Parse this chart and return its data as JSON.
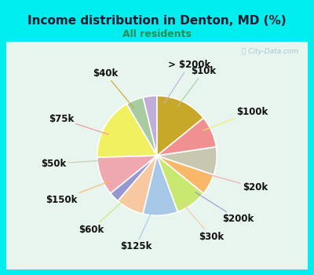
{
  "title": "Income distribution in Denton, MD (%)",
  "subtitle": "All residents",
  "title_color": "#1a1a2e",
  "subtitle_color": "#2e8b57",
  "background_outer": "#00eeee",
  "background_inner": "#e8f5ee",
  "watermark": "Ⓜ City-Data.com",
  "slices": [
    {
      "label": "> $200k",
      "value": 4,
      "color": "#c0aed8"
    },
    {
      "label": "$10k",
      "value": 5,
      "color": "#a8cca0"
    },
    {
      "label": "$100k",
      "value": 18,
      "color": "#f0f060"
    },
    {
      "label": "$20k",
      "value": 11,
      "color": "#f0a8b0"
    },
    {
      "label": "$200k",
      "value": 3,
      "color": "#9898d0"
    },
    {
      "label": "$30k",
      "value": 8,
      "color": "#f8c8a0"
    },
    {
      "label": "$125k",
      "value": 10,
      "color": "#a8c8e8"
    },
    {
      "label": "$60k",
      "value": 9,
      "color": "#c8e870"
    },
    {
      "label": "$150k",
      "value": 6,
      "color": "#f8b868"
    },
    {
      "label": "$50k",
      "value": 8,
      "color": "#c8c8b0"
    },
    {
      "label": "$75k",
      "value": 9,
      "color": "#f09090"
    },
    {
      "label": "$40k",
      "value": 15,
      "color": "#c8a828"
    }
  ],
  "label_fontsize": 8.5,
  "label_color": "#111111",
  "line_color_multiplier": 0.9
}
